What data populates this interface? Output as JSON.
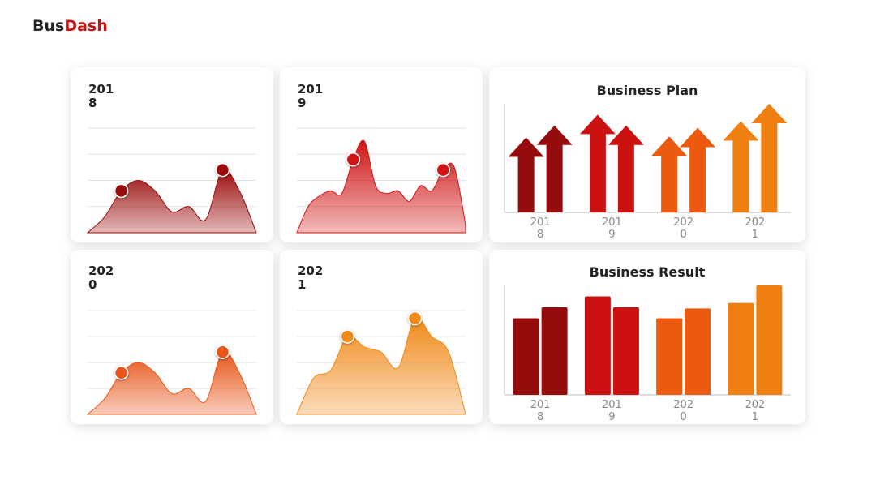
{
  "header": {
    "brand_a": "Bus",
    "brand_b": "Dash"
  },
  "chart_data": [
    {
      "type": "area",
      "title": "2018",
      "x": [
        0,
        1,
        2,
        3,
        4,
        5,
        6,
        7,
        8,
        9,
        10
      ],
      "values": [
        0,
        0.6,
        1.6,
        2.0,
        1.6,
        0.8,
        1.0,
        0.5,
        2.4,
        1.6,
        0
      ],
      "color": "#9b0d0d",
      "highlight": [
        2,
        8
      ],
      "xlim": [
        0,
        10
      ],
      "ylim": [
        0,
        4
      ],
      "yticks": [
        1,
        2,
        3,
        4
      ],
      "grid": true
    },
    {
      "type": "area",
      "title": "2019",
      "x": [
        0,
        1,
        2,
        3,
        4,
        5,
        6,
        7,
        8,
        9,
        10,
        11,
        12,
        13,
        14,
        15
      ],
      "values": [
        0,
        1.0,
        1.4,
        1.6,
        1.5,
        2.8,
        3.5,
        1.8,
        1.5,
        1.6,
        1.2,
        1.8,
        1.6,
        2.4,
        2.5,
        0.3
      ],
      "color": "#d01515",
      "highlight": [
        5,
        13
      ],
      "xlim": [
        0,
        15
      ],
      "ylim": [
        0,
        4
      ],
      "yticks": [
        1,
        2,
        3,
        4
      ],
      "grid": true
    },
    {
      "type": "bar",
      "style": "arrow",
      "title": "Business Plan",
      "categories": [
        "2018",
        "2019",
        "2020",
        "2021"
      ],
      "values": [
        [
          69,
          80
        ],
        [
          90,
          80
        ],
        [
          70,
          78
        ],
        [
          84,
          100
        ]
      ],
      "colors": [
        "#960b0b",
        "#cc1111",
        "#ec5a10",
        "#f07f12"
      ],
      "ylim": [
        0,
        100
      ]
    },
    {
      "type": "area",
      "title": "2020",
      "x": [
        0,
        1,
        2,
        3,
        4,
        5,
        6,
        7,
        8,
        9,
        10
      ],
      "values": [
        0,
        0.6,
        1.6,
        2.0,
        1.6,
        0.8,
        1.0,
        0.5,
        2.4,
        1.6,
        0
      ],
      "color": "#e8561a",
      "highlight": [
        2,
        8
      ],
      "xlim": [
        0,
        10
      ],
      "ylim": [
        0,
        4
      ],
      "yticks": [
        1,
        2,
        3,
        4
      ],
      "grid": true
    },
    {
      "type": "area",
      "title": "2021",
      "x": [
        0,
        1,
        2,
        3,
        4,
        5,
        6,
        7,
        8,
        9,
        10
      ],
      "values": [
        0,
        1.4,
        1.7,
        3.0,
        2.6,
        2.4,
        1.8,
        3.7,
        3.0,
        2.4,
        0
      ],
      "color": "#f08a1a",
      "highlight": [
        3,
        7
      ],
      "xlim": [
        0,
        10
      ],
      "ylim": [
        0,
        4
      ],
      "yticks": [
        1,
        2,
        3,
        4
      ],
      "grid": true
    },
    {
      "type": "bar",
      "style": "column",
      "title": "Business Result",
      "categories": [
        "2018",
        "2019",
        "2020",
        "2021"
      ],
      "values": [
        [
          70,
          80
        ],
        [
          90,
          80
        ],
        [
          70,
          79
        ],
        [
          84,
          100
        ]
      ],
      "colors": [
        "#960b0b",
        "#cc1111",
        "#ec5a10",
        "#f07f12"
      ],
      "ylim": [
        0,
        100
      ]
    }
  ]
}
